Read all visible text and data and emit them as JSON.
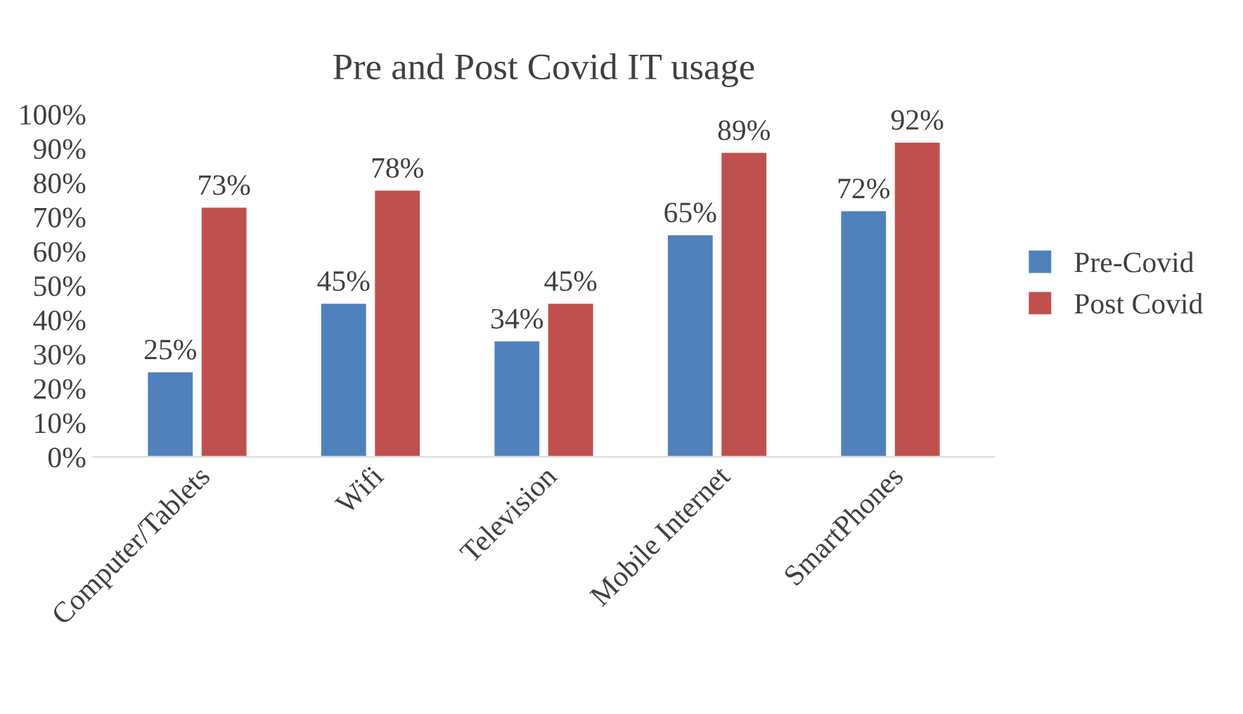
{
  "chart_data": {
    "type": "bar",
    "title": "Pre and Post Covid IT usage",
    "categories": [
      "Computer/Tablets",
      "Wifi",
      "Television",
      "Mobile Internet",
      "SmartPhones"
    ],
    "series": [
      {
        "name": "Pre-Covid",
        "color": "#4f81bd",
        "values": [
          25,
          45,
          34,
          65,
          72
        ],
        "value_labels": [
          "25%",
          "45%",
          "34%",
          "65%",
          "72%"
        ]
      },
      {
        "name": "Post Covid",
        "color": "#c0504d",
        "values": [
          73,
          78,
          45,
          89,
          92
        ],
        "value_labels": [
          "73%",
          "78%",
          "45%",
          "89%",
          "92%"
        ]
      }
    ],
    "ylim": [
      0,
      100
    ],
    "yticks": [
      {
        "value": 0,
        "label": "0%"
      },
      {
        "value": 10,
        "label": "10%"
      },
      {
        "value": 20,
        "label": "20%"
      },
      {
        "value": 30,
        "label": "30%"
      },
      {
        "value": 40,
        "label": "40%"
      },
      {
        "value": 50,
        "label": "50%"
      },
      {
        "value": 60,
        "label": "60%"
      },
      {
        "value": 70,
        "label": "70%"
      },
      {
        "value": 80,
        "label": "80%"
      },
      {
        "value": 90,
        "label": "90%"
      },
      {
        "value": 100,
        "label": "100%"
      }
    ],
    "legend": "right",
    "grid": false
  }
}
